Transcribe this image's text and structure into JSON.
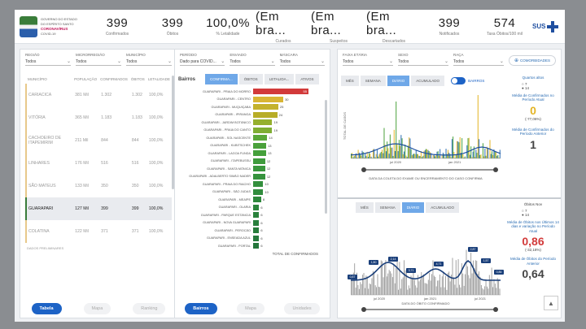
{
  "header": {
    "logo": {
      "line1": "GOVERNO DO ESTADO",
      "line2": "DO ESPÍRITO SANTO",
      "line3": "CORONAVÍRUS",
      "line4": "COVID-19"
    },
    "kpis": [
      {
        "value": "399",
        "label": "Confirmados"
      },
      {
        "value": "399",
        "label": "Óbitos"
      },
      {
        "value": "100,0%",
        "label": "% Letalidade"
      },
      {
        "value": "(Em bra...",
        "label": "Curados"
      },
      {
        "value": "(Em bra...",
        "label": "Suspeitos"
      },
      {
        "value": "(Em bra...",
        "label": "Descartados"
      },
      {
        "value": "399",
        "label": "Notificados"
      },
      {
        "value": "574",
        "label": "Taxa Óbitos/100 mil"
      }
    ],
    "sus": "SUS"
  },
  "left_panel": {
    "filters": [
      {
        "label": "REGIÃO",
        "value": "Todos"
      },
      {
        "label": "MICRORREGIÃO",
        "value": "Todos"
      },
      {
        "label": "MUNICÍPIO",
        "value": "Todos"
      }
    ],
    "columns": [
      "MUNICÍPIO",
      "POPULAÇÃO",
      "CONFIRMADOS",
      "ÓBITOS",
      "LETALIDADE"
    ],
    "rows": [
      {
        "cells": [
          "CARIACICA",
          "381 Mil",
          "1.302",
          "1.302",
          "100,0%"
        ],
        "hl": false
      },
      {
        "cells": [
          "VITÓRIA",
          "365 Mil",
          "1.183",
          "1.183",
          "100,0%"
        ],
        "hl": false
      },
      {
        "cells": [
          "CACHOEIRO DE ITAPEMIRIM",
          "211 Mil",
          "844",
          "844",
          "100,0%"
        ],
        "hl": false
      },
      {
        "cells": [
          "LINHARES",
          "176 Mil",
          "516",
          "516",
          "100,0%"
        ],
        "hl": false
      },
      {
        "cells": [
          "SÃO MATEUS",
          "133 Mil",
          "350",
          "350",
          "100,0%"
        ],
        "hl": false
      },
      {
        "cells": [
          "GUARAPARI",
          "127 Mil",
          "399",
          "399",
          "100,0%"
        ],
        "hl": true
      },
      {
        "cells": [
          "COLATINA",
          "122 Mil",
          "371",
          "371",
          "100,0%"
        ],
        "hl": false
      }
    ],
    "footnote": "DADOS PRELIMINARES",
    "tabs": [
      "Tabela",
      "Mapa",
      "Ranking"
    ]
  },
  "middle_panel": {
    "filters": [
      {
        "label": "PERÍODO",
        "value": "Dado para COVID..."
      },
      {
        "label": "ENVIADO",
        "value": "Todos"
      },
      {
        "label": "MÁSCARA",
        "value": "Todos"
      }
    ],
    "title": "Bairros",
    "seg": [
      "CONFIRMA...",
      "ÓBITOS",
      "LETALIDA...",
      "ATIVOS"
    ],
    "bars": [
      {
        "label": "GUARAPARI - PRAIA DO MORRO",
        "value": 55,
        "color": "#d23a3a"
      },
      {
        "label": "GUARAPARI - CENTRO",
        "value": 30,
        "color": "#d9b534"
      },
      {
        "label": "GUARAPARI - MUQUIÇABA",
        "value": 25,
        "color": "#c4b22c"
      },
      {
        "label": "GUARAPARI - IPIRANGA",
        "value": 24,
        "color": "#b8ad27"
      },
      {
        "label": "GUARAPARI - JARDIM BOTÂNICO",
        "value": 19,
        "color": "#95b02e"
      },
      {
        "label": "GUARAPARI - PRAIA DO CANTO",
        "value": 19,
        "color": "#7fae33"
      },
      {
        "label": "GUARAPARI - SOL NASCENTE",
        "value": 14,
        "color": "#5aa838"
      },
      {
        "label": "GUARAPARI - KUBITSCHEK",
        "value": 13,
        "color": "#4aa13b"
      },
      {
        "label": "GUARAPARI - LAGOA FUNDA",
        "value": 13,
        "color": "#45a03b"
      },
      {
        "label": "GUARAPARI - ITAPEBUSSU",
        "value": 12,
        "color": "#3f9b3d"
      },
      {
        "label": "GUARAPARI - SANTA MÔNICA",
        "value": 12,
        "color": "#3a973d"
      },
      {
        "label": "GUARAPARI - ADALBERTO SIMÃO NADER",
        "value": 12,
        "color": "#36933d"
      },
      {
        "label": "GUARAPARI - PRAIA DO RIACHO",
        "value": 10,
        "color": "#348f3d"
      },
      {
        "label": "GUARAPARI - SÃO JUDAS",
        "value": 10,
        "color": "#318c3d"
      },
      {
        "label": "GUARAPARI - MEAÍPE",
        "value": 8,
        "color": "#2e883c"
      },
      {
        "label": "GUARAPARI - OLARIA",
        "value": 6,
        "color": "#2c853c"
      },
      {
        "label": "GUARAPARI - PARQUE ESTÂNCIA",
        "value": 6,
        "color": "#2a823c"
      },
      {
        "label": "GUARAPARI - NOVA GUARAPARI",
        "value": 6,
        "color": "#287f3c"
      },
      {
        "label": "GUARAPARI - PEROCÃO",
        "value": 6,
        "color": "#277c3b"
      },
      {
        "label": "GUARAPARI - ENSEADA AZUL",
        "value": 6,
        "color": "#25793b"
      },
      {
        "label": "GUARAPARI - PORTAL",
        "value": 6,
        "color": "#24763b"
      }
    ],
    "axis_title": "TOTAL DE CONFIRMADOS",
    "tabs": [
      "Bairros",
      "Mapa",
      "Unidades"
    ]
  },
  "right_panel": {
    "filters": [
      {
        "label": "FAIXA ETÁRIA",
        "value": "Todos"
      },
      {
        "label": "SEXO",
        "value": "Todos"
      },
      {
        "label": "RAÇA",
        "value": "Todos"
      }
    ],
    "cta": "COMORBIDADES",
    "top_chart": {
      "seg": [
        "MÊS",
        "SEMANA",
        "DIÁRIO",
        "ACUMULADO"
      ],
      "active": 2,
      "toggle_label": "BAIRROS",
      "ylabel": "TOTAL DE CASOS",
      "xticks": [
        "jul 2020",
        "jan 2021"
      ],
      "xlabel": "DATA DA COLETA DO EXAME OU ENCERRAMENTO DO CASO CONFIRMA",
      "side": {
        "title": "Quartos altos",
        "legend1": "7",
        "legend2": "14",
        "note1": "Média de Confirmados no Período Atual",
        "v1": "0",
        "v1sub": "(-77,06%)",
        "note2": "Média de Confirmados do Período Anterior",
        "v2": "1"
      }
    },
    "bottom_chart": {
      "seg": [
        "MÊS",
        "SEMANA",
        "DIÁRIO",
        "ACUMULADO"
      ],
      "active": 2,
      "xticks": [
        "jul 2020",
        "jan 2021",
        "jul 2021"
      ],
      "xlabel": "DATA DO ÓBITO CONFIRMADO",
      "labels": [
        "0,87",
        "1,80",
        "2,14",
        "3,71",
        "4,71",
        "2,87",
        "1,57",
        "0,86"
      ],
      "side": {
        "title": "Óbitos Nov",
        "legend1": "7",
        "legend2": "14",
        "note1": "Média de Óbitos nos Últimos 14 dias e variação no Período Atual",
        "v1": "0,86",
        "v1sub": "(-32,18%)",
        "note2": "Média de Óbitos do Período Anterior",
        "v2": "0,64"
      }
    }
  },
  "colors": {
    "accent_blue": "#1d63c6",
    "seg_active": "#6fa8e8",
    "red_value": "#d23a3a",
    "green_value": "#3a8f2b",
    "yellow_value": "#e3b425"
  }
}
